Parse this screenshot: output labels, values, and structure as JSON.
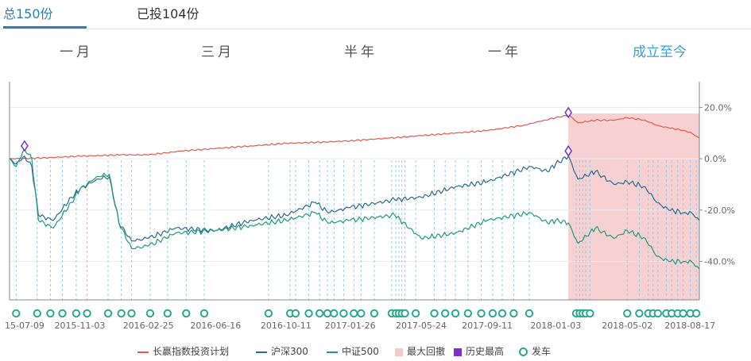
{
  "tabs": [
    {
      "label": "总150份",
      "active": true
    },
    {
      "label": "已投104份",
      "active": false
    }
  ],
  "periods": [
    {
      "label": "一月",
      "active": false
    },
    {
      "label": "三月",
      "active": false
    },
    {
      "label": "半年",
      "active": false
    },
    {
      "label": "一年",
      "active": false
    },
    {
      "label": "成立至今",
      "active": true
    }
  ],
  "legend": [
    {
      "label": "长赢指数投资计划",
      "color": "#e05a4e",
      "kind": "line"
    },
    {
      "label": "沪深300",
      "color": "#2b6a8e",
      "kind": "line"
    },
    {
      "label": "中证500",
      "color": "#1f9b78",
      "kind": "line"
    },
    {
      "label": "最大回撤",
      "color": "#f6c9c9",
      "kind": "box"
    },
    {
      "label": "历史最高",
      "color": "#7a2fd1",
      "kind": "box"
    },
    {
      "label": "发车",
      "color": "#2aa98a",
      "kind": "ring"
    }
  ],
  "chart_data": {
    "type": "line",
    "x_tick_labels": [
      "15-07-09",
      "2015-11-03",
      "2016-02-25",
      "2016-06-16",
      "2016-10-11",
      "2017-01-26",
      "2017-05-24",
      "2017-09-11",
      "2018-01-03",
      "2018-05-02",
      "2018-08-17"
    ],
    "y_tick_labels": [
      "20.0%",
      "0.0%",
      "-20.0%",
      "-40.0%"
    ],
    "y_ticks": [
      20,
      0,
      -20,
      -40
    ],
    "ylim": [
      -55,
      30
    ],
    "x_domain": [
      "2015-07-09",
      "2018-08-30"
    ],
    "grid": "horizontal",
    "legend_position": "bottom",
    "colors": {
      "plan": "#e05a4e",
      "hs300": "#2b6a8e",
      "zz500": "#1f9b78",
      "drawdown": "#f6c9c9",
      "peak": "#7a2fd1",
      "buy": "#2aa98a",
      "buyline": "#9ccbe0"
    },
    "series": [
      {
        "name": "长赢指数投资计划",
        "key": "plan",
        "points": [
          [
            "2015-07-09",
            0
          ],
          [
            "2015-09-01",
            0.3
          ],
          [
            "2015-11-03",
            1
          ],
          [
            "2016-01-10",
            1.5
          ],
          [
            "2016-02-25",
            1.5
          ],
          [
            "2016-04-20",
            3
          ],
          [
            "2016-06-16",
            4
          ],
          [
            "2016-08-15",
            5
          ],
          [
            "2016-10-11",
            6
          ],
          [
            "2016-12-15",
            6.5
          ],
          [
            "2017-01-26",
            7
          ],
          [
            "2017-03-30",
            8
          ],
          [
            "2017-05-24",
            9
          ],
          [
            "2017-07-20",
            10
          ],
          [
            "2017-09-11",
            11
          ],
          [
            "2017-11-10",
            13
          ],
          [
            "2017-12-15",
            15
          ],
          [
            "2018-01-03",
            16
          ],
          [
            "2018-01-25",
            17
          ],
          [
            "2018-02-09",
            14
          ],
          [
            "2018-03-10",
            15
          ],
          [
            "2018-04-10",
            15
          ],
          [
            "2018-05-02",
            16
          ],
          [
            "2018-06-01",
            15
          ],
          [
            "2018-06-20",
            13
          ],
          [
            "2018-07-10",
            12
          ],
          [
            "2018-08-05",
            11
          ],
          [
            "2018-08-17",
            10
          ],
          [
            "2018-08-30",
            8
          ]
        ]
      },
      {
        "name": "沪深300",
        "key": "hs300",
        "points": [
          [
            "2015-07-09",
            0
          ],
          [
            "2015-07-20",
            -2
          ],
          [
            "2015-08-03",
            1
          ],
          [
            "2015-08-15",
            -3
          ],
          [
            "2015-08-26",
            -22
          ],
          [
            "2015-09-20",
            -24
          ],
          [
            "2015-10-20",
            -15
          ],
          [
            "2015-11-03",
            -12
          ],
          [
            "2015-12-01",
            -8
          ],
          [
            "2015-12-22",
            -7
          ],
          [
            "2016-01-07",
            -25
          ],
          [
            "2016-01-28",
            -32
          ],
          [
            "2016-02-25",
            -31
          ],
          [
            "2016-04-10",
            -27
          ],
          [
            "2016-06-16",
            -28
          ],
          [
            "2016-08-15",
            -24
          ],
          [
            "2016-10-11",
            -22
          ],
          [
            "2016-11-29",
            -17
          ],
          [
            "2016-12-20",
            -21
          ],
          [
            "2017-01-26",
            -19
          ],
          [
            "2017-04-10",
            -16
          ],
          [
            "2017-05-24",
            -15
          ],
          [
            "2017-07-20",
            -11
          ],
          [
            "2017-09-11",
            -9
          ],
          [
            "2017-11-22",
            -3
          ],
          [
            "2017-12-20",
            -5
          ],
          [
            "2018-01-03",
            -2
          ],
          [
            "2018-01-24",
            1
          ],
          [
            "2018-02-09",
            -8
          ],
          [
            "2018-03-10",
            -5
          ],
          [
            "2018-04-10",
            -10
          ],
          [
            "2018-05-02",
            -9
          ],
          [
            "2018-06-01",
            -11
          ],
          [
            "2018-06-20",
            -17
          ],
          [
            "2018-07-10",
            -20
          ],
          [
            "2018-08-05",
            -21
          ],
          [
            "2018-08-17",
            -21
          ],
          [
            "2018-08-30",
            -24
          ]
        ]
      },
      {
        "name": "中证500",
        "key": "zz500",
        "points": [
          [
            "2015-07-09",
            0
          ],
          [
            "2015-07-20",
            -3
          ],
          [
            "2015-08-03",
            4
          ],
          [
            "2015-08-15",
            0
          ],
          [
            "2015-08-26",
            -24
          ],
          [
            "2015-09-20",
            -27
          ],
          [
            "2015-10-20",
            -17
          ],
          [
            "2015-11-03",
            -12
          ],
          [
            "2015-12-01",
            -7
          ],
          [
            "2015-12-22",
            -6
          ],
          [
            "2016-01-07",
            -25
          ],
          [
            "2016-01-28",
            -35
          ],
          [
            "2016-02-25",
            -34
          ],
          [
            "2016-04-10",
            -29
          ],
          [
            "2016-06-16",
            -28
          ],
          [
            "2016-08-15",
            -26
          ],
          [
            "2016-10-11",
            -24
          ],
          [
            "2016-11-29",
            -21
          ],
          [
            "2016-12-20",
            -25
          ],
          [
            "2017-01-26",
            -24
          ],
          [
            "2017-04-10",
            -22
          ],
          [
            "2017-05-24",
            -31
          ],
          [
            "2017-07-20",
            -29
          ],
          [
            "2017-09-11",
            -24
          ],
          [
            "2017-11-22",
            -21
          ],
          [
            "2017-12-20",
            -25
          ],
          [
            "2018-01-03",
            -24
          ],
          [
            "2018-01-24",
            -25
          ],
          [
            "2018-02-09",
            -33
          ],
          [
            "2018-03-10",
            -27
          ],
          [
            "2018-04-10",
            -31
          ],
          [
            "2018-05-02",
            -28
          ],
          [
            "2018-06-01",
            -31
          ],
          [
            "2018-06-20",
            -38
          ],
          [
            "2018-07-10",
            -40
          ],
          [
            "2018-08-05",
            -40
          ],
          [
            "2018-08-17",
            -40
          ],
          [
            "2018-08-30",
            -43
          ]
        ]
      }
    ],
    "drawdown_range": [
      "2018-01-24",
      "2018-08-30"
    ],
    "peak_markers": [
      {
        "date": "2015-08-03",
        "value": 5,
        "series": "plan"
      },
      {
        "date": "2018-01-24",
        "value": 18,
        "series": "plan"
      },
      {
        "date": "2018-01-24",
        "value": 3,
        "series": "hs300"
      }
    ],
    "buy_dates": [
      "2015-07-20",
      "2015-08-24",
      "2015-09-15",
      "2015-10-05",
      "2015-10-28",
      "2015-11-15",
      "2015-12-20",
      "2016-01-11",
      "2016-01-28",
      "2016-02-28",
      "2016-03-28",
      "2016-04-28",
      "2016-05-28",
      "2016-09-12",
      "2016-10-18",
      "2016-10-27",
      "2016-11-18",
      "2016-12-06",
      "2016-12-19",
      "2016-12-30",
      "2017-01-15",
      "2017-02-01",
      "2017-02-13",
      "2017-03-07",
      "2017-04-05",
      "2017-04-12",
      "2017-04-17",
      "2017-04-22",
      "2017-04-27",
      "2017-05-15",
      "2017-06-15",
      "2017-07-03",
      "2017-07-20",
      "2017-08-10",
      "2017-09-01",
      "2017-09-20",
      "2017-10-06",
      "2017-10-25",
      "2017-11-20",
      "2018-02-06",
      "2018-02-12",
      "2018-02-17",
      "2018-02-22",
      "2018-03-01",
      "2018-05-02",
      "2018-05-22",
      "2018-06-06",
      "2018-06-14",
      "2018-06-22",
      "2018-07-06",
      "2018-07-15",
      "2018-07-25",
      "2018-08-03",
      "2018-08-15",
      "2018-08-25"
    ]
  }
}
